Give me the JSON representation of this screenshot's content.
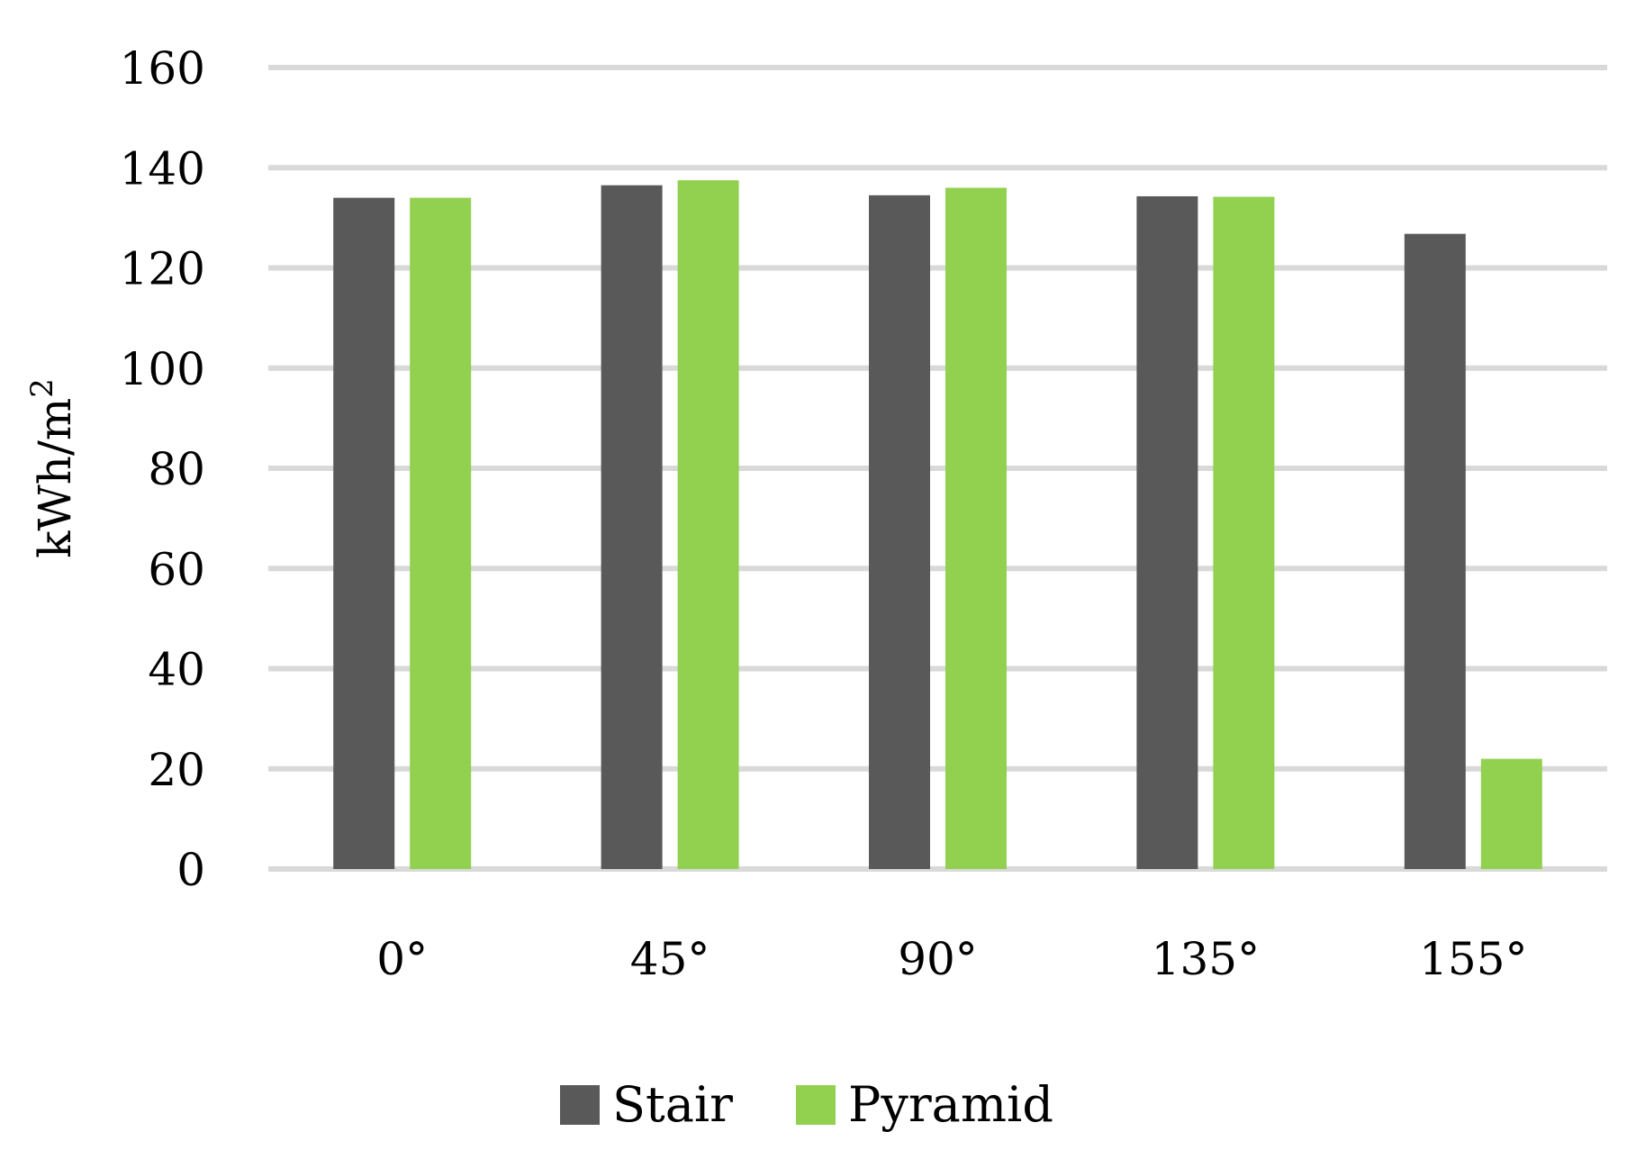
{
  "chart_data": {
    "type": "bar",
    "categories": [
      "0°",
      "45°",
      "90°",
      "135°",
      "155°"
    ],
    "series": [
      {
        "name": "Stair",
        "values": [
          134,
          136.5,
          134.5,
          134.3,
          126.8
        ]
      },
      {
        "name": "Pyramid",
        "values": [
          134,
          137.5,
          136,
          134.2,
          22
        ]
      }
    ],
    "title": "",
    "xlabel": "",
    "ylabel": "kWh/m",
    "ylabel_superscript": "2",
    "ylim": [
      0,
      160
    ],
    "yticks": [
      0,
      20,
      40,
      60,
      80,
      100,
      120,
      140,
      160
    ],
    "grid": true,
    "legend_position": "bottom",
    "colors": {
      "Stair": "#595959",
      "Pyramid": "#92d050",
      "grid": "#d9d9d9"
    }
  }
}
